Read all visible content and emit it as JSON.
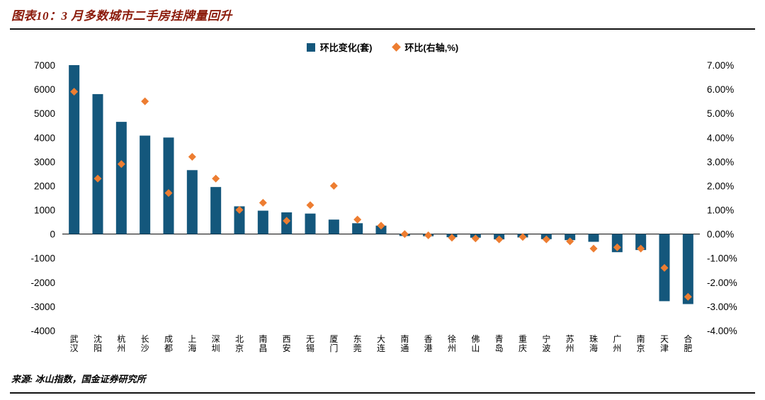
{
  "header": {
    "title": "图表10：3 月多数城市二手房挂牌量回升"
  },
  "legend": [
    {
      "label": "环比变化(套)",
      "marker": "square",
      "color": "#14577C"
    },
    {
      "label": "环比(右轴,%)",
      "marker": "diamond",
      "color": "#ED7D31"
    }
  ],
  "footer": {
    "source": "来源: 冰山指数，国金证券研究所"
  },
  "chart_data": {
    "type": "bar",
    "subtype": "bar+scatter dual-axis combo",
    "title": "图表10：3 月多数城市二手房挂牌量回升",
    "grid": false,
    "legend_position": "top-center",
    "categories": [
      "武汉",
      "沈阳",
      "杭州",
      "长沙",
      "成都",
      "上海",
      "深圳",
      "北京",
      "南昌",
      "西安",
      "无锡",
      "厦门",
      "东莞",
      "大连",
      "南通",
      "香港",
      "徐州",
      "佛山",
      "青岛",
      "重庆",
      "宁波",
      "苏州",
      "珠海",
      "广州",
      "南京",
      "天津",
      "合肥"
    ],
    "series": [
      {
        "name": "环比变化(套)",
        "type": "bar",
        "axis": "left",
        "color": "#14577C",
        "values": [
          7000,
          5800,
          4650,
          4080,
          4000,
          2650,
          1950,
          1150,
          970,
          900,
          850,
          600,
          450,
          350,
          -80,
          -90,
          -130,
          -150,
          -220,
          -140,
          -210,
          -250,
          -320,
          -750,
          -660,
          -2780,
          -2900
        ]
      },
      {
        "name": "环比(右轴,%)",
        "type": "scatter",
        "axis": "right",
        "color": "#ED7D31",
        "values": [
          5.9,
          2.3,
          2.9,
          5.5,
          1.7,
          3.2,
          2.3,
          1.0,
          1.3,
          0.55,
          1.2,
          2.0,
          0.6,
          0.35,
          0.0,
          -0.05,
          -0.15,
          -0.18,
          -0.22,
          -0.12,
          -0.22,
          -0.3,
          -0.6,
          -0.55,
          -0.6,
          -1.4,
          -2.6
        ]
      }
    ],
    "left_axis": {
      "min": -4000,
      "max": 7000,
      "step": 1000,
      "ticks": [
        7000,
        6000,
        5000,
        4000,
        3000,
        2000,
        1000,
        0,
        -1000,
        -2000,
        -3000,
        -4000
      ],
      "labels": [
        "7000",
        "6000",
        "5000",
        "4000",
        "3000",
        "2000",
        "1000",
        "0",
        "-1000",
        "-2000",
        "-3000",
        "-4000"
      ]
    },
    "right_axis": {
      "min": -4,
      "max": 7,
      "step": 1,
      "ticks": [
        7,
        6,
        5,
        4,
        3,
        2,
        1,
        0,
        -1,
        -2,
        -3,
        -4
      ],
      "labels": [
        "7.00%",
        "6.00%",
        "5.00%",
        "4.00%",
        "3.00%",
        "2.00%",
        "1.00%",
        "0.00%",
        "-1.00%",
        "-2.00%",
        "-3.00%",
        "-4.00%"
      ]
    }
  }
}
